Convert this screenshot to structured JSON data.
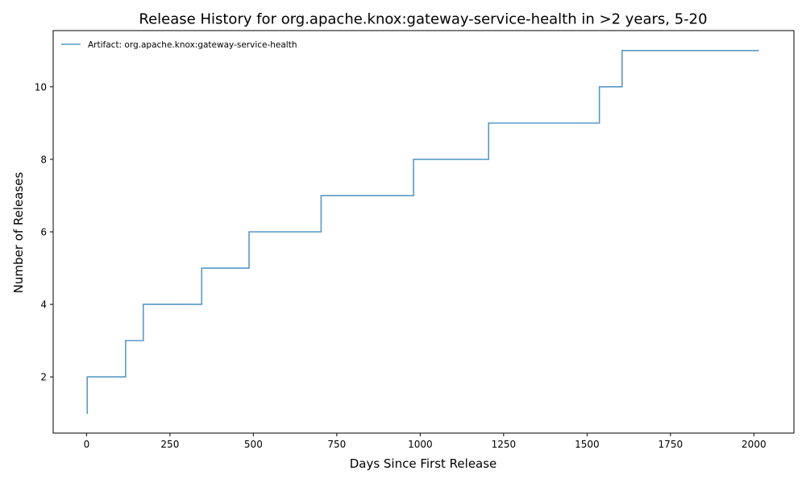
{
  "chart_data": {
    "type": "line",
    "title": "Release History for org.apache.knox:gateway-service-health in >2 years, 5-20",
    "xlabel": "Days Since First Release",
    "ylabel": "Number of Releases",
    "xlim": [
      -100,
      2120
    ],
    "ylim": [
      0.45,
      11.55
    ],
    "xticks": [
      0,
      250,
      500,
      750,
      1000,
      1250,
      1500,
      1750,
      2000
    ],
    "yticks": [
      2,
      4,
      6,
      8,
      10
    ],
    "grid": false,
    "legend_position": "top-left",
    "step": "post",
    "series": [
      {
        "name": "Artifact: org.apache.knox:gateway-service-health",
        "color": "#1f77b4",
        "x": [
          0,
          2,
          117,
          170,
          345,
          487,
          703,
          980,
          1205,
          1537,
          1605,
          2015
        ],
        "y": [
          1,
          2,
          3,
          4,
          5,
          6,
          7,
          8,
          9,
          10,
          11,
          11
        ]
      }
    ]
  }
}
